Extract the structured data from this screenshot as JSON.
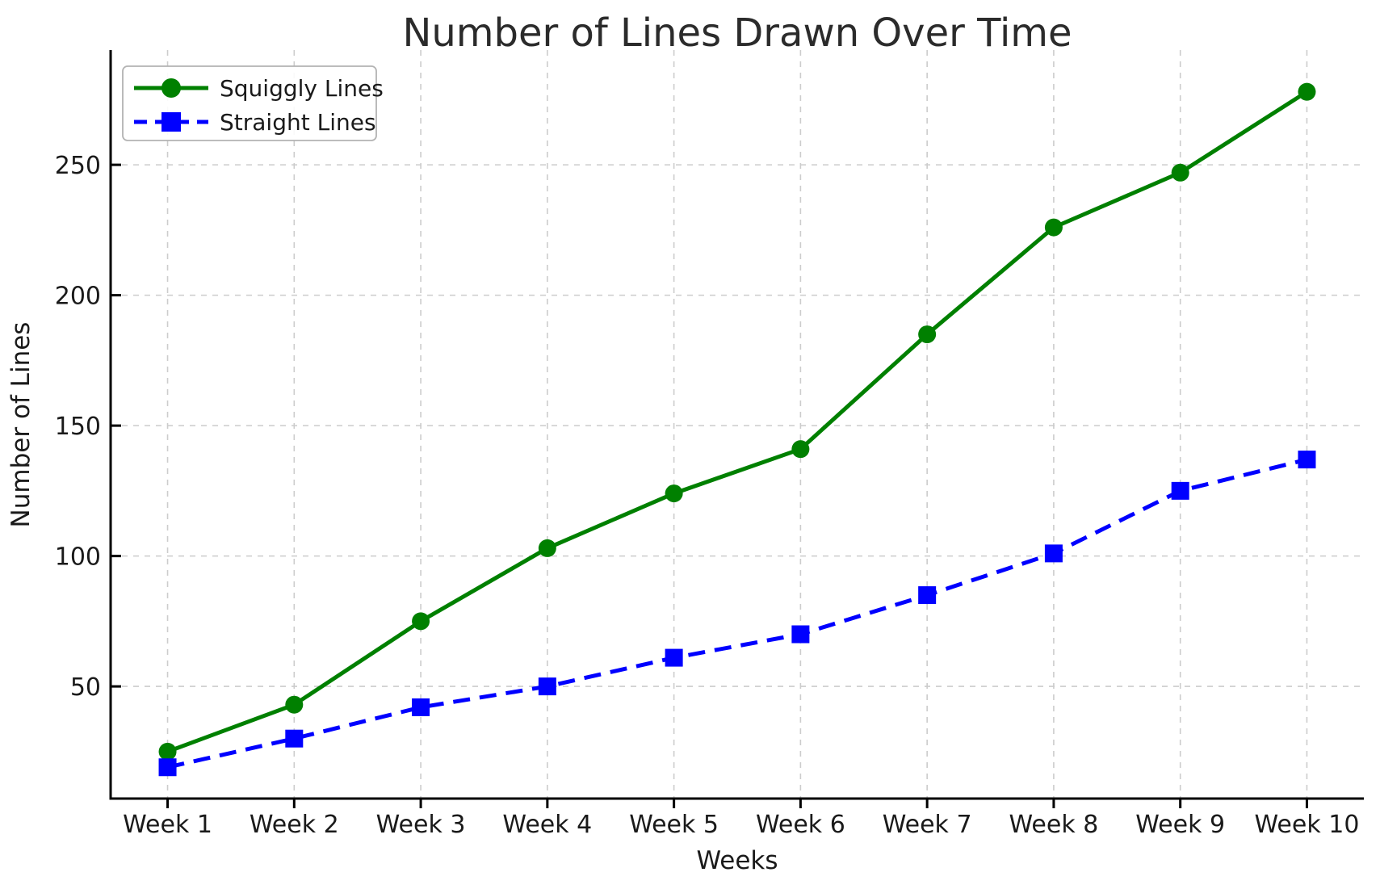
{
  "chart_data": {
    "type": "line",
    "title": "Number of Lines Drawn Over Time",
    "xlabel": "Weeks",
    "ylabel": "Number of Lines",
    "categories": [
      "Week 1",
      "Week 2",
      "Week 3",
      "Week 4",
      "Week 5",
      "Week 6",
      "Week 7",
      "Week 8",
      "Week 9",
      "Week 10"
    ],
    "series": [
      {
        "name": "Squiggly Lines",
        "values": [
          25,
          43,
          75,
          103,
          124,
          141,
          185,
          226,
          247,
          278
        ],
        "color": "#008000",
        "marker": "circle",
        "linestyle": "solid"
      },
      {
        "name": "Straight Lines",
        "values": [
          19,
          30,
          42,
          50,
          61,
          70,
          85,
          101,
          125,
          137
        ],
        "color": "#0000ff",
        "marker": "square",
        "linestyle": "dashed"
      }
    ],
    "yticks": [
      50,
      100,
      150,
      200,
      250
    ],
    "ylim": [
      7,
      294
    ],
    "grid": true,
    "legend_position": "upper left",
    "colors": {
      "grid": "#cccccc",
      "axis": "#000000",
      "text": "#1a1a1a",
      "legend_border": "#b3b3b3",
      "background": "#ffffff"
    }
  }
}
